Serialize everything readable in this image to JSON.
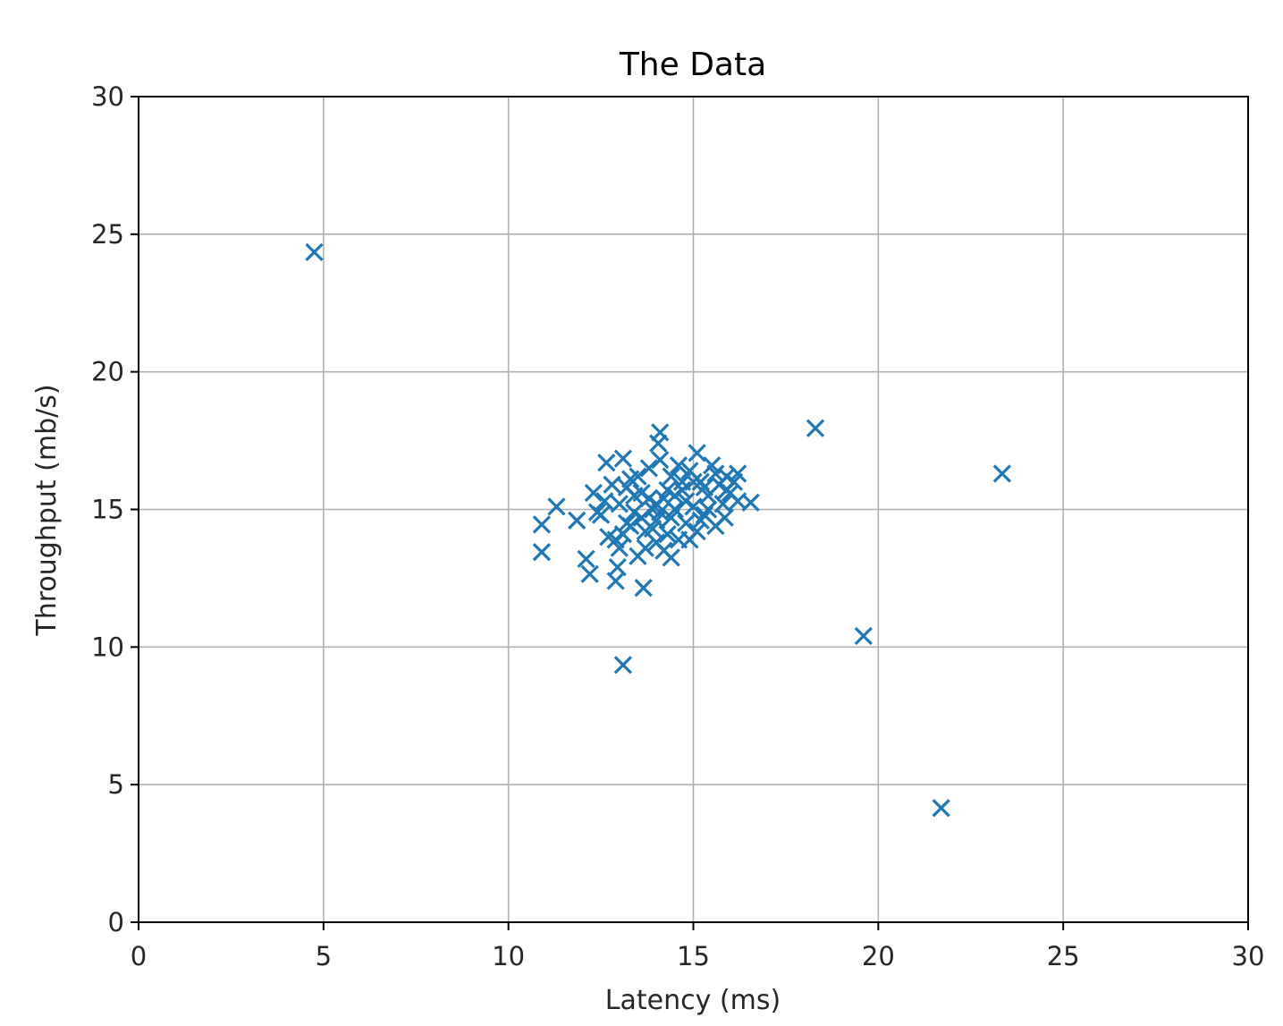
{
  "chart_data": {
    "type": "scatter",
    "title": "The Data",
    "xlabel": "Latency (ms)",
    "ylabel": "Throughput (mb/s)",
    "xlim": [
      0,
      30
    ],
    "ylim": [
      0,
      30
    ],
    "xticks": [
      "0",
      "5",
      "10",
      "15",
      "20",
      "25",
      "30"
    ],
    "yticks": [
      "0",
      "5",
      "10",
      "15",
      "20",
      "25",
      "30"
    ],
    "grid": true,
    "marker": "x",
    "color": "#1f77b4",
    "points": [
      [
        4.75,
        24.35
      ],
      [
        18.3,
        17.95
      ],
      [
        23.35,
        16.3
      ],
      [
        19.6,
        10.4
      ],
      [
        21.7,
        4.15
      ],
      [
        13.1,
        9.35
      ],
      [
        10.9,
        14.45
      ],
      [
        10.9,
        13.45
      ],
      [
        11.3,
        15.1
      ],
      [
        12.1,
        13.2
      ],
      [
        12.2,
        12.65
      ],
      [
        12.9,
        12.4
      ],
      [
        12.95,
        12.9
      ],
      [
        13.65,
        12.15
      ],
      [
        12.65,
        16.7
      ],
      [
        13.1,
        16.85
      ],
      [
        14.1,
        17.8
      ],
      [
        14.05,
        17.4
      ],
      [
        15.1,
        17.05
      ],
      [
        16.55,
        15.25
      ],
      [
        16.2,
        16.3
      ],
      [
        15.85,
        14.7
      ],
      [
        14.4,
        13.25
      ],
      [
        11.85,
        14.6
      ],
      [
        12.3,
        15.6
      ],
      [
        12.5,
        14.8
      ],
      [
        12.7,
        14.0
      ],
      [
        12.8,
        15.9
      ],
      [
        13.0,
        15.2
      ],
      [
        13.0,
        13.6
      ],
      [
        13.2,
        14.5
      ],
      [
        13.3,
        16.1
      ],
      [
        13.4,
        14.9
      ],
      [
        13.5,
        13.3
      ],
      [
        13.6,
        15.6
      ],
      [
        13.7,
        14.2
      ],
      [
        13.8,
        16.5
      ],
      [
        13.9,
        15.0
      ],
      [
        14.0,
        13.8
      ],
      [
        14.0,
        14.6
      ],
      [
        14.1,
        16.8
      ],
      [
        14.2,
        15.4
      ],
      [
        14.3,
        14.1
      ],
      [
        14.4,
        16.2
      ],
      [
        14.5,
        15.0
      ],
      [
        14.6,
        13.9
      ],
      [
        14.7,
        15.7
      ],
      [
        14.8,
        14.5
      ],
      [
        14.9,
        16.4
      ],
      [
        15.0,
        15.1
      ],
      [
        15.1,
        14.2
      ],
      [
        15.2,
        16.0
      ],
      [
        15.3,
        14.8
      ],
      [
        15.4,
        15.5
      ],
      [
        15.5,
        16.6
      ],
      [
        15.6,
        14.4
      ],
      [
        15.7,
        15.9
      ],
      [
        15.8,
        15.2
      ],
      [
        15.9,
        16.2
      ],
      [
        16.0,
        15.6
      ],
      [
        16.1,
        16.0
      ],
      [
        16.2,
        15.3
      ],
      [
        13.2,
        15.8
      ],
      [
        13.6,
        14.7
      ],
      [
        14.2,
        13.5
      ],
      [
        14.7,
        16.0
      ],
      [
        15.3,
        15.8
      ],
      [
        13.9,
        14.3
      ],
      [
        14.5,
        15.5
      ],
      [
        12.6,
        15.3
      ],
      [
        13.1,
        14.1
      ],
      [
        14.9,
        13.9
      ],
      [
        15.6,
        16.3
      ],
      [
        13.4,
        15.5
      ],
      [
        14.3,
        15.7
      ],
      [
        14.0,
        15.2
      ],
      [
        15.2,
        14.6
      ],
      [
        13.7,
        13.6
      ],
      [
        12.9,
        13.9
      ],
      [
        15.9,
        15.7
      ],
      [
        14.6,
        16.6
      ],
      [
        13.5,
        16.2
      ],
      [
        14.8,
        15.3
      ],
      [
        14.1,
        14.9
      ],
      [
        13.3,
        14.4
      ],
      [
        15.0,
        16.0
      ],
      [
        14.4,
        14.7
      ],
      [
        13.8,
        15.4
      ],
      [
        15.4,
        15.0
      ],
      [
        12.4,
        14.9
      ]
    ]
  }
}
